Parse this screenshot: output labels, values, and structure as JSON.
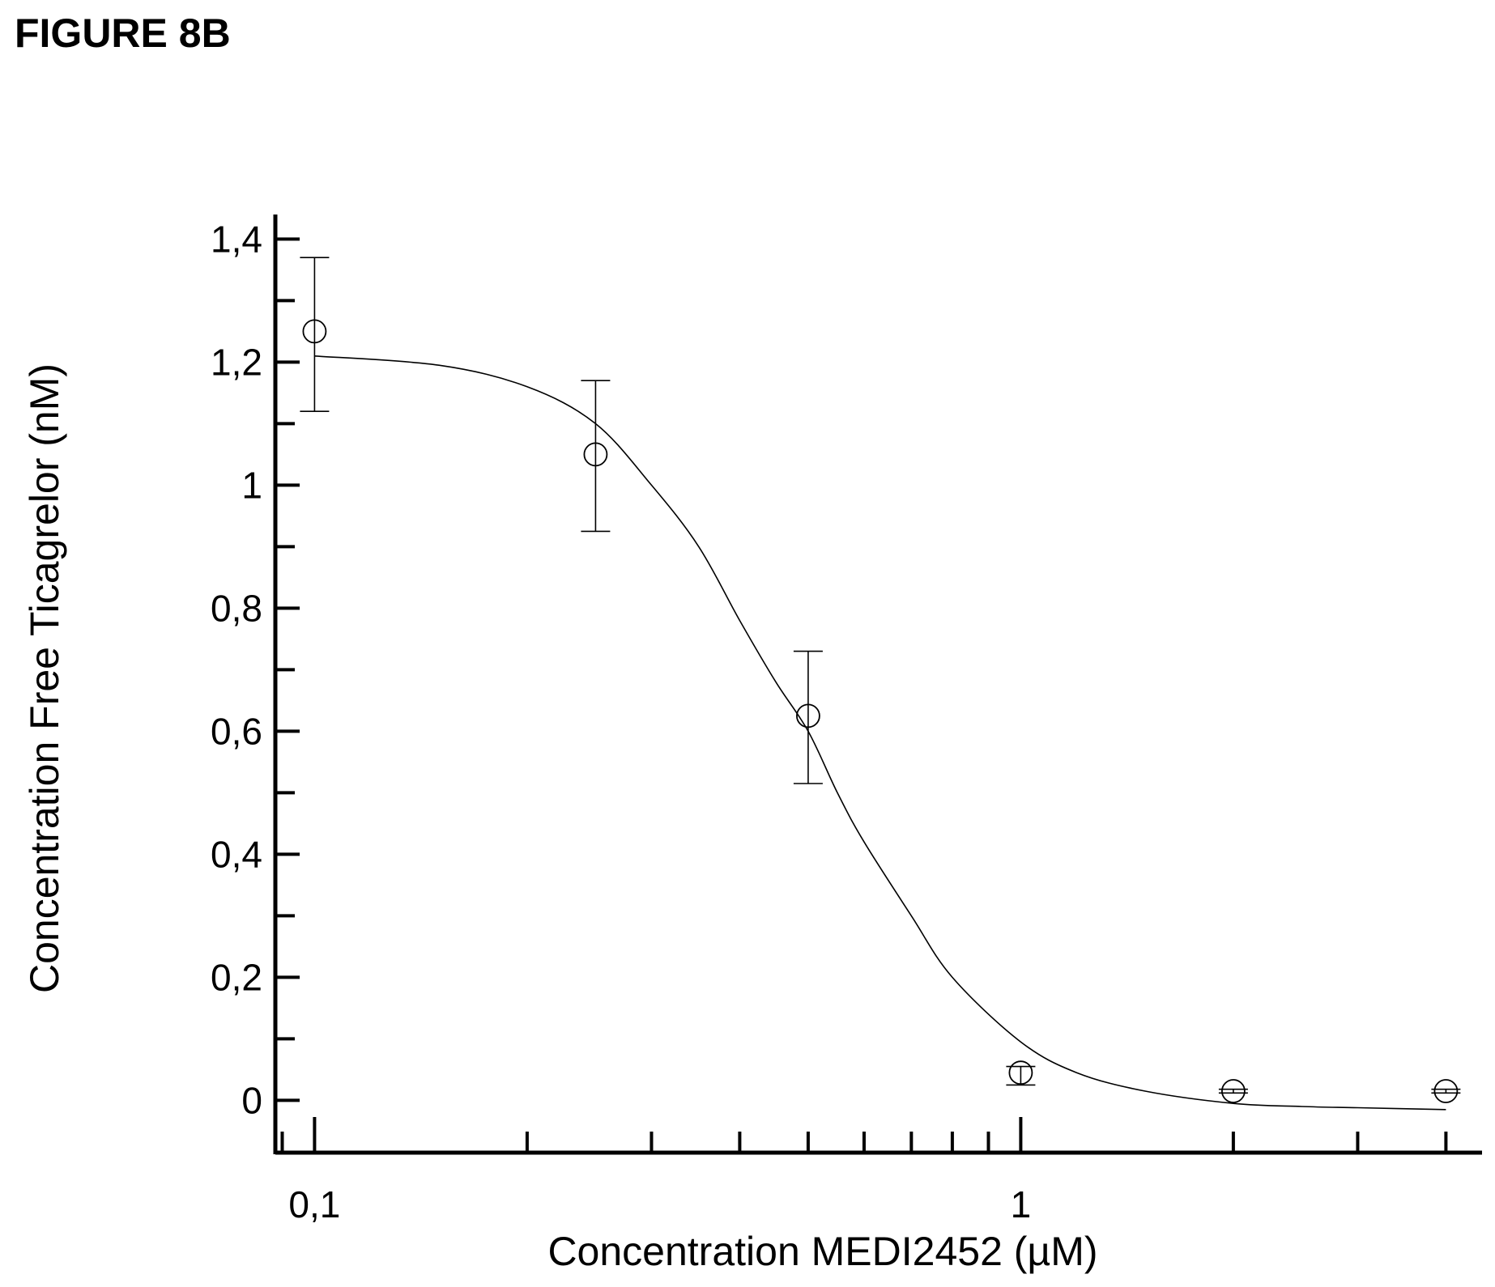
{
  "figure_label": "FIGURE 8B",
  "chart_data": {
    "type": "scatter",
    "xlabel": "Concentration MEDI2452  (µM)",
    "ylabel": "Concentration Free  Ticagrelor (nM)",
    "x_scale": "log",
    "xlim": [
      0.088,
      4.5
    ],
    "ylim": [
      -0.085,
      1.44
    ],
    "x_ticks": [
      {
        "value": 0.1,
        "label": "0,1"
      },
      {
        "value": 1,
        "label": "1"
      }
    ],
    "y_ticks": [
      {
        "value": 0,
        "label": "0"
      },
      {
        "value": 0.2,
        "label": "0,2"
      },
      {
        "value": 0.4,
        "label": "0,4"
      },
      {
        "value": 0.6,
        "label": "0,6"
      },
      {
        "value": 0.8,
        "label": "0,8"
      },
      {
        "value": 1,
        "label": "1"
      },
      {
        "value": 1.2,
        "label": "1,2"
      },
      {
        "value": 1.4,
        "label": "1,4"
      }
    ],
    "points": [
      {
        "x": 0.1,
        "y": 1.25,
        "err_low": 1.12,
        "err_high": 1.37
      },
      {
        "x": 0.25,
        "y": 1.05,
        "err_low": 0.925,
        "err_high": 1.17
      },
      {
        "x": 0.5,
        "y": 0.625,
        "err_low": 0.515,
        "err_high": 0.73
      },
      {
        "x": 1.0,
        "y": 0.045,
        "err_low": 0.025,
        "err_high": 0.055
      },
      {
        "x": 2.0,
        "y": 0.015,
        "err_low": 0.012,
        "err_high": 0.018
      },
      {
        "x": 4.0,
        "y": 0.015,
        "err_low": 0.012,
        "err_high": 0.018
      }
    ],
    "fit_curve": {
      "x": [
        0.1,
        0.15,
        0.2,
        0.25,
        0.3,
        0.35,
        0.4,
        0.45,
        0.5,
        0.55,
        0.6,
        0.7,
        0.8,
        1.0,
        1.2,
        1.5,
        2.0,
        2.5,
        3.0,
        4.0
      ],
      "y": [
        1.21,
        1.195,
        1.16,
        1.1,
        1.0,
        0.9,
        0.78,
        0.68,
        0.6,
        0.5,
        0.42,
        0.3,
        0.2,
        0.095,
        0.045,
        0.015,
        -0.005,
        -0.01,
        -0.012,
        -0.015
      ]
    },
    "grid": false,
    "legend": false
  }
}
